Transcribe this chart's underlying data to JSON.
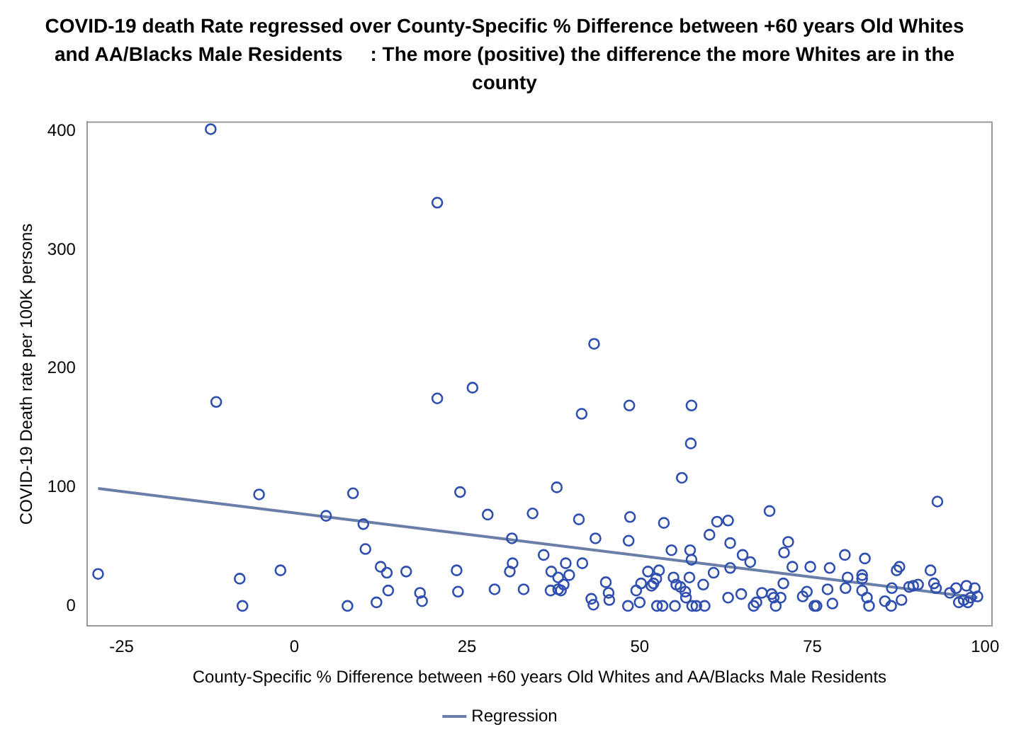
{
  "chart_data": {
    "type": "scatter",
    "title": "COVID-19 death Rate regressed over County-Specific % Difference between +60 years Old Whites and AA/Blacks Male Residents     : The more (positive) the difference the more Whites are in the county",
    "xlabel": "County-Specific % Difference between +60 years Old Whites and AA/Blacks Male Residents",
    "ylabel": "COVID-19 Death rate per 100K persons",
    "xlim": [
      -30,
      101
    ],
    "xticks": [
      -25,
      0,
      25,
      50,
      75,
      100
    ],
    "ylim": [
      -17,
      408
    ],
    "yticks": [
      0,
      100,
      200,
      300,
      400
    ],
    "grid": false,
    "legend": "bottom",
    "series": [
      {
        "color": "#2f4fb0",
        "marker": "circle",
        "x": [
          -12.1,
          -11.3,
          -28.4,
          -5.1,
          -7.9,
          -7.5,
          -2,
          4.6,
          8.5,
          10,
          10.3,
          12.5,
          13.4,
          7.7,
          11.9,
          13.6,
          16.2,
          18.2,
          18.5,
          20.7,
          20.7,
          25.8,
          24,
          23.5,
          23.7,
          28,
          29,
          31.5,
          31.6,
          31.2,
          33.2,
          34.5,
          36.1,
          38,
          37.2,
          38.2,
          39.3,
          39.8,
          39,
          37.1,
          38.2,
          38.6,
          41.7,
          41.2,
          41.6,
          43.4,
          43.6,
          43,
          43.3,
          45.1,
          45.5,
          45.6,
          48.5,
          48.6,
          48.4,
          48.3,
          49.5,
          50,
          51.2,
          51.7,
          52,
          52.4,
          52.8,
          50.2,
          52.5,
          53.3,
          55.1,
          53.5,
          54.6,
          56.1,
          54.9,
          55.3,
          55.9,
          56.6,
          56.7,
          57.2,
          57.5,
          57.4,
          57.3,
          57.5,
          57.6,
          58.2,
          59.2,
          59.4,
          60.1,
          60.7,
          61.2,
          62.8,
          63.1,
          63.1,
          62.8,
          64.7,
          64.9,
          66,
          66.5,
          66.9,
          67.7,
          68.8,
          69.1,
          69.4,
          69.7,
          70.4,
          70.8,
          70.9,
          71.5,
          72.1,
          73.6,
          74.2,
          74.7,
          75.3,
          75.6,
          77.2,
          77.5,
          77.9,
          79.7,
          79.8,
          80.1,
          82.2,
          82.2,
          82.2,
          82.6,
          82.9,
          83.2,
          85.5,
          86.4,
          86.5,
          87.2,
          87.6,
          87.9,
          89,
          89.6,
          90.3,
          92.1,
          93.1,
          92.6,
          92.9,
          94.9,
          95.8,
          96.2,
          96.9,
          97.3,
          97.5,
          97.9,
          98.5,
          98.9
        ],
        "values": [
          402,
          172,
          27,
          94,
          23,
          0,
          30,
          76,
          95,
          69,
          48,
          33,
          28,
          0,
          3,
          13,
          29,
          11,
          4,
          340,
          175,
          184,
          96,
          30,
          12,
          77,
          14,
          57,
          36,
          29,
          14,
          78,
          43,
          100,
          29,
          24,
          36,
          26,
          18,
          13,
          14,
          13,
          36,
          73,
          162,
          221,
          57,
          6,
          1,
          20,
          11,
          5,
          169,
          75,
          55,
          0,
          13,
          3,
          29,
          17,
          19,
          23,
          30,
          19,
          0,
          0,
          0,
          70,
          47,
          108,
          24,
          18,
          16,
          12,
          7,
          24,
          169,
          137,
          47,
          39,
          0,
          0,
          18,
          0,
          60,
          28,
          71,
          72,
          53,
          32,
          7,
          10,
          43,
          37,
          0,
          3,
          11,
          80,
          10,
          7,
          0,
          7,
          19,
          45,
          54,
          33,
          8,
          12,
          33,
          0,
          0,
          14,
          32,
          2,
          43,
          15,
          24,
          26,
          23,
          13,
          40,
          7,
          0,
          4,
          0,
          15,
          30,
          33,
          5,
          16,
          17,
          18,
          30,
          88,
          19,
          15,
          11,
          15,
          3,
          5,
          17,
          3,
          7,
          15,
          8
        ]
      },
      {
        "type": "line",
        "name": "Regression",
        "color": "#6a7fa8",
        "marker": "none",
        "line_style": "solid",
        "x": [
          -28.4,
          98.9
        ],
        "values": [
          99,
          7
        ]
      }
    ]
  }
}
